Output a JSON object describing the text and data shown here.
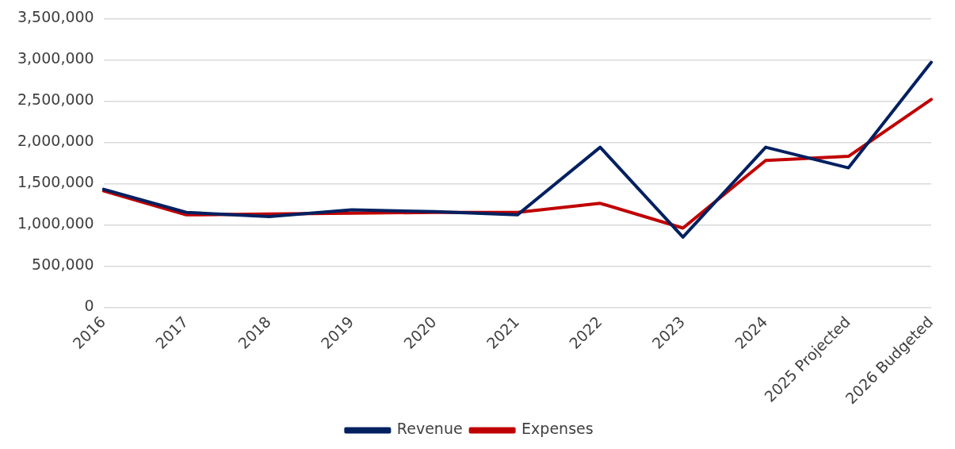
{
  "chart_data": {
    "type": "line",
    "categories": [
      "2016",
      "2017",
      "2018",
      "2019",
      "2020",
      "2021",
      "2022",
      "2023",
      "2024",
      "2025 Projected",
      "2026 Budgeted"
    ],
    "series": [
      {
        "name": "Revenue",
        "color": "#002060",
        "values": [
          1430000,
          1150000,
          1100000,
          1180000,
          1160000,
          1120000,
          1940000,
          850000,
          1940000,
          1690000,
          2970000
        ]
      },
      {
        "name": "Expenses",
        "color": "#c00000",
        "values": [
          1410000,
          1120000,
          1130000,
          1140000,
          1150000,
          1150000,
          1260000,
          960000,
          1780000,
          1830000,
          2520000
        ]
      }
    ],
    "ylim": [
      0,
      3500000
    ],
    "yticks": [
      0,
      {
        "value": 500000,
        "label": "500,000"
      },
      {
        "value": 1000000,
        "label": "1,000,000"
      },
      {
        "value": 1500000,
        "label": "1,500,000"
      },
      {
        "value": 2000000,
        "label": "2,000,000"
      },
      {
        "value": 2500000,
        "label": "2,500,000"
      },
      {
        "value": 3000000,
        "label": "3,000,000"
      },
      {
        "value": 3500000,
        "label": "3,500,000"
      }
    ],
    "grid": "y",
    "legend": "bottom",
    "marker": "none",
    "line_style": "solid"
  }
}
